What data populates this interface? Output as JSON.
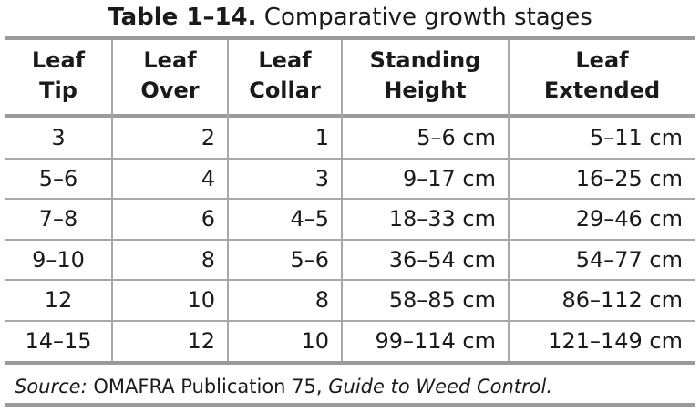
{
  "title": {
    "label": "Table 1–14.",
    "text": "Comparative growth stages"
  },
  "table": {
    "headers": [
      [
        "Leaf",
        "Tip"
      ],
      [
        "Leaf",
        "Over"
      ],
      [
        "Leaf",
        "Collar"
      ],
      [
        "Standing",
        "Height"
      ],
      [
        "Leaf",
        "Extended"
      ]
    ],
    "rows": [
      [
        "3",
        "2",
        "1",
        "5–6 cm",
        "5–11 cm"
      ],
      [
        "5–6",
        "4",
        "3",
        "9–17 cm",
        "16–25 cm"
      ],
      [
        "7–8",
        "6",
        "4–5",
        "18–33 cm",
        "29–46 cm"
      ],
      [
        "9–10",
        "8",
        "5–6",
        "36–54 cm",
        "54–77 cm"
      ],
      [
        "12",
        "10",
        "8",
        "58–85 cm",
        "86–112 cm"
      ],
      [
        "14–15",
        "12",
        "10",
        "99–114 cm",
        "121–149 cm"
      ]
    ]
  },
  "source": {
    "prefix": "Source:",
    "text": "OMAFRA Publication 75,",
    "title": "Guide to Weed Control."
  }
}
